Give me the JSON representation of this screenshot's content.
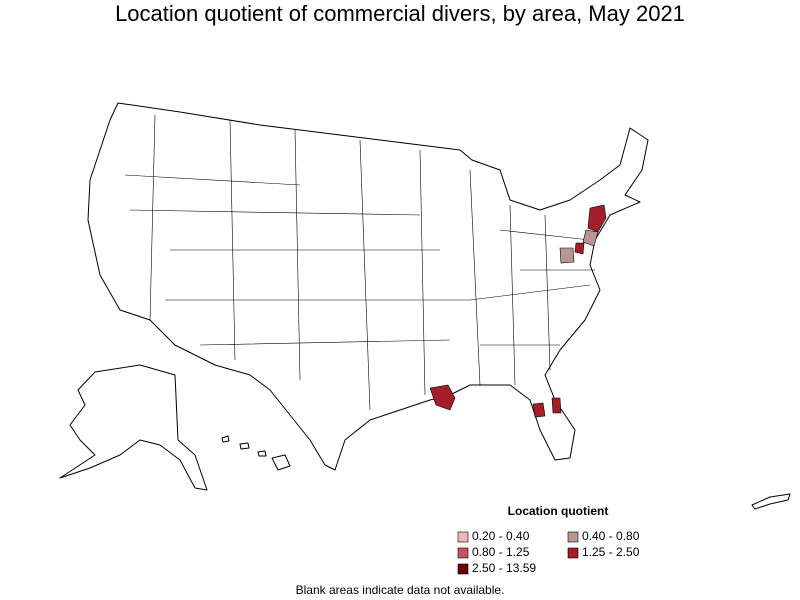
{
  "title": "Location quotient of commercial divers, by area, May 2021",
  "legend": {
    "title": "Location quotient",
    "items": [
      {
        "label": "0.20 - 0.40",
        "color": "#f2b5bd"
      },
      {
        "label": "0.40 - 0.80",
        "color": "#b89692"
      },
      {
        "label": "0.80 - 1.25",
        "color": "#c9535d"
      },
      {
        "label": "1.25 - 2.50",
        "color": "#a41e2a"
      },
      {
        "label": "2.50 - 13.59",
        "color": "#6b0000"
      }
    ]
  },
  "footnote": "Blank areas indicate data not available."
}
